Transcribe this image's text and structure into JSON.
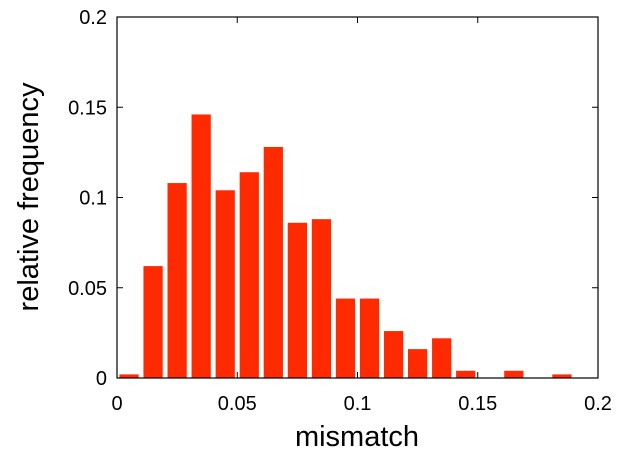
{
  "chart_data": {
    "type": "bar",
    "title": "",
    "xlabel": "mismatch",
    "ylabel": "relative frequency",
    "xlim": [
      0,
      0.2
    ],
    "ylim": [
      0,
      0.2
    ],
    "xticks": [
      0,
      0.05,
      0.1,
      0.15,
      0.2
    ],
    "yticks": [
      0,
      0.05,
      0.1,
      0.15,
      0.2
    ],
    "xtick_labels": [
      "0",
      "0.05",
      "0.1",
      "0.15",
      "0.2"
    ],
    "ytick_labels": [
      "0",
      "0.05",
      "0.1",
      "0.15",
      "0.2"
    ],
    "bin_width": 0.01,
    "x": [
      0,
      0.01,
      0.02,
      0.03,
      0.04,
      0.05,
      0.06,
      0.07,
      0.08,
      0.09,
      0.1,
      0.11,
      0.12,
      0.13,
      0.14,
      0.15,
      0.16,
      0.17,
      0.18,
      0.19
    ],
    "values": [
      0.002,
      0.062,
      0.108,
      0.146,
      0.104,
      0.114,
      0.128,
      0.086,
      0.088,
      0.044,
      0.044,
      0.026,
      0.016,
      0.022,
      0.004,
      0.0,
      0.004,
      0.0,
      0.002,
      0.0
    ],
    "bar_color": "#ff2a00",
    "grid": false,
    "legend": false
  }
}
